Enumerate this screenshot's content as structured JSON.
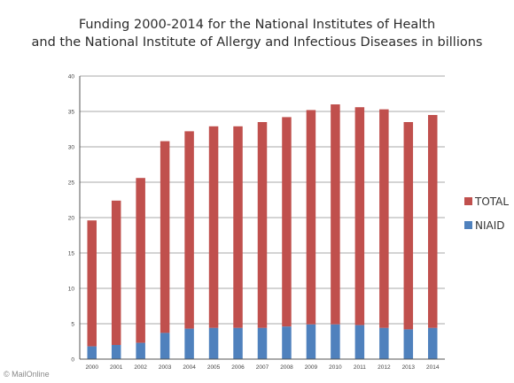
{
  "colors": {
    "total": "#c0504d",
    "niaid": "#4f81bd",
    "grid": "#8c8c8c",
    "axis": "#555555"
  },
  "chart_data": {
    "type": "bar",
    "stacked": true,
    "title_lines": [
      "Funding 2000-2014 for the National Institutes of Health",
      "and the National Institute of Allergy and Infectious Diseases in billions"
    ],
    "xlabel": "",
    "ylabel": "",
    "ylim": [
      0,
      40
    ],
    "yticks": [
      0,
      5,
      10,
      15,
      20,
      25,
      30,
      35,
      40
    ],
    "grid": true,
    "legend_position": "right",
    "categories": [
      "2000",
      "2001",
      "2002",
      "2003",
      "2004",
      "2005",
      "2006",
      "2007",
      "2008",
      "2009",
      "2010",
      "2011",
      "2012",
      "2013",
      "2014"
    ],
    "series": [
      {
        "name": "TOTAL",
        "values": [
          19.6,
          22.4,
          25.6,
          30.8,
          32.2,
          32.9,
          32.9,
          33.5,
          34.2,
          35.2,
          36.0,
          35.6,
          35.3,
          33.5,
          34.5
        ]
      },
      {
        "name": "NIAID",
        "values": [
          1.8,
          2.0,
          2.3,
          3.7,
          4.3,
          4.4,
          4.4,
          4.4,
          4.6,
          4.9,
          4.9,
          4.8,
          4.4,
          4.2,
          4.4
        ]
      }
    ]
  },
  "credit": "© MailOnline"
}
